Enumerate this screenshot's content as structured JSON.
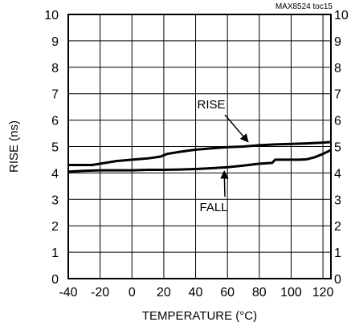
{
  "chart_data": {
    "type": "line",
    "title": "",
    "source_tag": "MAX8524 toc15",
    "xlabel": "TEMPERATURE (°C)",
    "ylabel": "RISE (ns)",
    "xlim": [
      -40,
      125
    ],
    "ylim": [
      0,
      10
    ],
    "x_ticks": [
      "-40",
      "-20",
      "0",
      "20",
      "40",
      "60",
      "80",
      "100",
      "120"
    ],
    "y_ticks": [
      "0",
      "1",
      "2",
      "3",
      "4",
      "5",
      "6",
      "7",
      "8",
      "9",
      "10"
    ],
    "grid": true,
    "series": [
      {
        "name": "RISE",
        "x": [
          -40,
          -30,
          -25,
          -20,
          -10,
          0,
          10,
          18,
          22,
          30,
          40,
          50,
          60,
          70,
          80,
          90,
          100,
          110,
          120,
          125
        ],
        "y": [
          4.3,
          4.3,
          4.3,
          4.35,
          4.45,
          4.5,
          4.55,
          4.62,
          4.72,
          4.8,
          4.88,
          4.93,
          4.98,
          5.0,
          5.05,
          5.08,
          5.1,
          5.12,
          5.15,
          5.17
        ]
      },
      {
        "name": "FALL",
        "x": [
          -40,
          -30,
          -20,
          -10,
          0,
          10,
          20,
          30,
          40,
          50,
          60,
          70,
          80,
          88,
          90,
          100,
          105,
          110,
          115,
          120,
          125
        ],
        "y": [
          4.05,
          4.08,
          4.1,
          4.1,
          4.1,
          4.12,
          4.12,
          4.13,
          4.15,
          4.18,
          4.22,
          4.28,
          4.35,
          4.38,
          4.5,
          4.5,
          4.5,
          4.52,
          4.6,
          4.72,
          4.87
        ]
      }
    ],
    "annotations": [
      {
        "text": "RISE",
        "series": "RISE"
      },
      {
        "text": "FALL",
        "series": "FALL"
      }
    ]
  }
}
